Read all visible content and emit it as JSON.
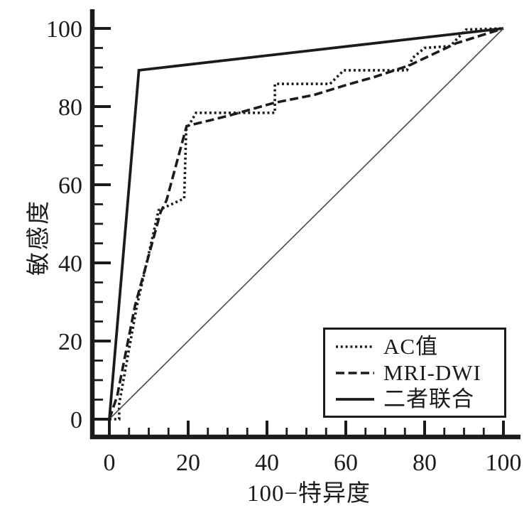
{
  "figure": {
    "background": "#ffffff",
    "ink_color": "#1b1b1b",
    "reference_line_color": "#4a4a4a"
  },
  "axes": {
    "x": {
      "label": "100−特异度",
      "min": 0,
      "max": 100,
      "major_ticks": [
        0,
        20,
        40,
        60,
        80,
        100
      ],
      "minor_step": 5
    },
    "y": {
      "label": "敏感度",
      "min": 0,
      "max": 100,
      "major_ticks": [
        0,
        20,
        40,
        60,
        80,
        100
      ],
      "minor_step": 5
    }
  },
  "legend": {
    "position": "lower-right",
    "items": [
      {
        "label": "AC值",
        "style": "dotted"
      },
      {
        "label": "MRI-DWI",
        "style": "dashed"
      },
      {
        "label": "二者联合",
        "style": "solid"
      }
    ]
  },
  "chart_data": {
    "type": "line",
    "title": "",
    "xlabel": "100−特异度",
    "ylabel": "敏感度",
    "xlim": [
      0,
      100
    ],
    "ylim": [
      0,
      100
    ],
    "grid": false,
    "legend_position": "lower-right",
    "series": [
      {
        "name": "AC值",
        "style": "dotted",
        "points": [
          [
            0,
            0
          ],
          [
            2.5,
            0
          ],
          [
            2.5,
            4
          ],
          [
            7,
            29
          ],
          [
            12.5,
            53.5
          ],
          [
            19,
            56.5
          ],
          [
            19.5,
            74
          ],
          [
            22,
            78.4
          ],
          [
            42,
            78.4
          ],
          [
            42,
            85.8
          ],
          [
            56,
            85.8
          ],
          [
            59.5,
            89.3
          ],
          [
            75.5,
            89.3
          ],
          [
            77,
            92.5
          ],
          [
            80,
            95
          ],
          [
            86.5,
            95.5
          ],
          [
            90.5,
            99.7
          ],
          [
            100,
            100
          ]
        ]
      },
      {
        "name": "MRI-DWI",
        "style": "dashed",
        "points": [
          [
            0,
            0
          ],
          [
            2,
            6
          ],
          [
            6.5,
            29
          ],
          [
            13,
            53
          ],
          [
            14.5,
            56
          ],
          [
            19.6,
            75
          ],
          [
            30,
            77.6
          ],
          [
            42,
            81
          ],
          [
            52,
            83
          ],
          [
            60,
            85.5
          ],
          [
            67,
            87.5
          ],
          [
            76,
            90.5
          ],
          [
            88,
            96.2
          ],
          [
            100,
            100
          ]
        ]
      },
      {
        "name": "二者联合",
        "style": "solid",
        "points": [
          [
            0,
            0
          ],
          [
            7.5,
            89.3
          ],
          [
            100,
            100
          ]
        ]
      },
      {
        "name": "reference-diagonal",
        "style": "thin",
        "points": [
          [
            0,
            0
          ],
          [
            100,
            100
          ]
        ]
      }
    ]
  }
}
